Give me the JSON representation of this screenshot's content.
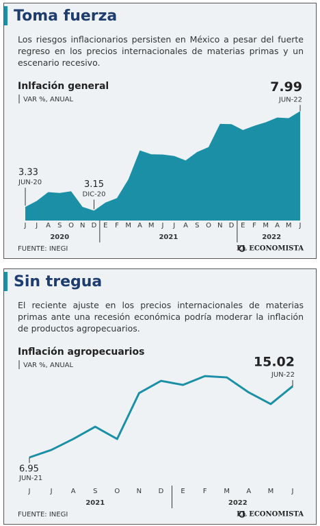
{
  "chart_data": [
    {
      "type": "area",
      "title": "Toma fuerza",
      "subtitle": "Los riesgos inflacionarios persisten en México a pesar del fuerte regreso en los precios internacionales de materias primas y un escenario recesivo.",
      "chart_title": "Inlfación general",
      "unit": "VAR %, ANUAL",
      "categories": [
        "J",
        "J",
        "A",
        "S",
        "O",
        "N",
        "D",
        "E",
        "F",
        "M",
        "A",
        "M",
        "J",
        "J",
        "A",
        "S",
        "O",
        "N",
        "D",
        "E",
        "F",
        "M",
        "A",
        "M",
        "J"
      ],
      "years": [
        "2020",
        "2021",
        "2022"
      ],
      "values": [
        3.33,
        3.62,
        4.05,
        4.01,
        4.09,
        3.33,
        3.15,
        3.54,
        3.76,
        4.67,
        6.08,
        5.89,
        5.88,
        5.81,
        5.59,
        6.0,
        6.24,
        7.37,
        7.36,
        7.07,
        7.28,
        7.45,
        7.68,
        7.65,
        7.99
      ],
      "point_labels": [
        "JUN-20",
        null,
        null,
        null,
        null,
        null,
        "DIC-20",
        null,
        null,
        null,
        null,
        null,
        null,
        null,
        null,
        null,
        null,
        null,
        null,
        null,
        null,
        null,
        null,
        null,
        "JUN-22"
      ],
      "color": "#1b8fa6",
      "ylim": [
        2.8,
        8.4
      ],
      "source": "FUENTE: INEGI",
      "brand": "EL ECONOMISTA"
    },
    {
      "type": "line",
      "title": "Sin tregua",
      "subtitle": "El reciente ajuste en los precios internacionales de materias primas ante una recesión económica podría moderar la inflación de productos agropecuarios.",
      "chart_title": "Inflación agropecuarios",
      "unit": "VAR %, ANUAL",
      "categories": [
        "J",
        "J",
        "A",
        "S",
        "O",
        "N",
        "D",
        "E",
        "F",
        "M",
        "A",
        "M",
        "J"
      ],
      "years": [
        "2021",
        "2022"
      ],
      "values": [
        6.95,
        7.8,
        9.04,
        10.43,
        9.04,
        14.24,
        15.63,
        15.17,
        16.17,
        16.02,
        14.32,
        13.0,
        15.02
      ],
      "point_labels": [
        "JUN-21",
        null,
        null,
        null,
        null,
        null,
        null,
        null,
        null,
        null,
        null,
        null,
        "JUN-22"
      ],
      "color": "#1b8fa6",
      "ylim": [
        5,
        17.5
      ],
      "source": "FUENTE: INEGI",
      "brand": "EL ECONOMISTA"
    }
  ]
}
